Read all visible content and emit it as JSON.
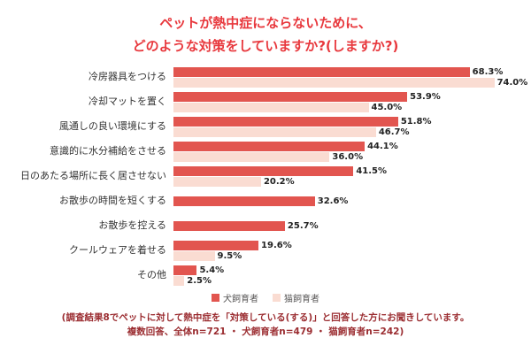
{
  "title": {
    "line1": "ペットが熱中症にならないために、",
    "line2": "どのような対策をしていますか?(しますか?)"
  },
  "colors": {
    "title": "#e8383d",
    "dog_bar": "#e2554f",
    "cat_bar": "#fadcd2",
    "footer_text": "#9b2d31"
  },
  "chart_data": {
    "type": "bar",
    "orientation": "horizontal",
    "title": "ペットが熱中症にならないために、どのような対策をしていますか?(しますか?)",
    "categories": [
      "冷房器具をつける",
      "冷却マットを置く",
      "風通しの良い環境にする",
      "意識的に水分補給をさせる",
      "日のあたる場所に長く居させない",
      "お散歩の時間を短くする",
      "お散歩を控える",
      "クールウェアを着せる",
      "その他"
    ],
    "series": [
      {
        "name": "犬飼育者",
        "values": [
          68.3,
          53.9,
          51.8,
          44.1,
          41.5,
          32.6,
          25.7,
          19.6,
          5.4
        ]
      },
      {
        "name": "猫飼育者",
        "values": [
          74.0,
          45.0,
          46.7,
          36.0,
          20.2,
          null,
          null,
          9.5,
          2.5
        ]
      }
    ],
    "xlim": [
      0,
      80
    ],
    "value_suffix": "%",
    "legend_position": "bottom",
    "grid": false
  },
  "legend": [
    {
      "label": "犬飼育者"
    },
    {
      "label": "猫飼育者"
    }
  ],
  "footer": {
    "line1": "(調査結果8でペットに対して熱中症を「対策している(する)」と回答した方にお聞きしています。",
    "line2": "複数回答、全体n=721 ・ 犬飼育者n=479 ・ 猫飼育者n=242)"
  }
}
